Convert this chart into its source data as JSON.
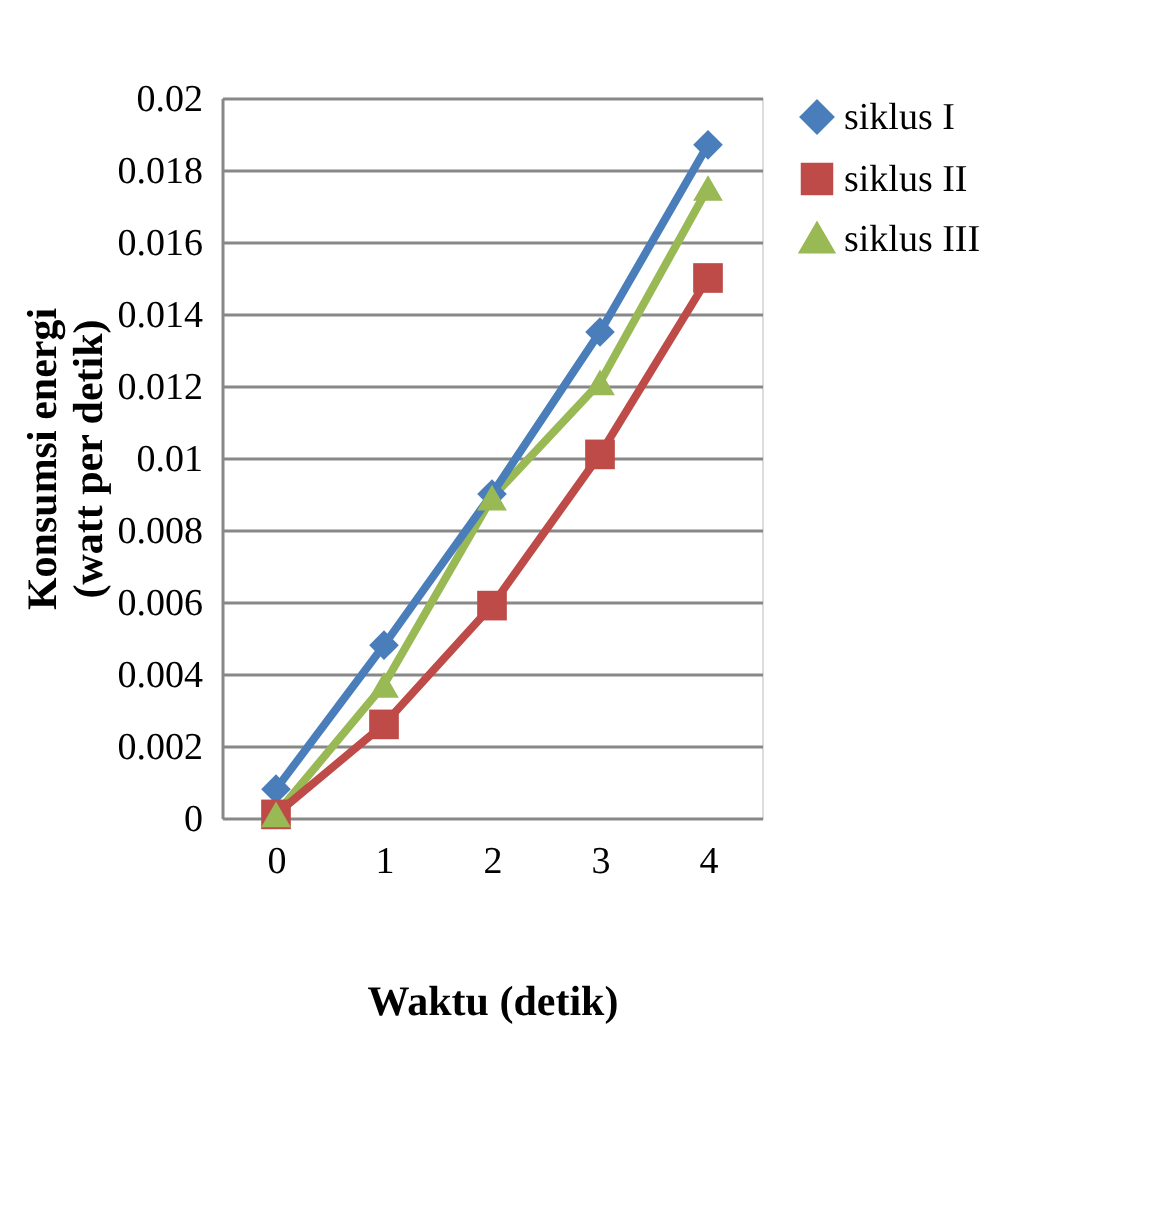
{
  "chart_data": {
    "type": "line",
    "xlabel": "Waktu (detik)",
    "ylabel": "Konsumsi energi (watt per detik)",
    "categories": [
      "0",
      "1",
      "2",
      "3",
      "4"
    ],
    "series": [
      {
        "name": "siklus I",
        "color": "#4a7ebb",
        "marker": "diamond",
        "values": [
          0.0008,
          0.0048,
          0.009,
          0.0135,
          0.0187
        ]
      },
      {
        "name": "siklus II",
        "color": "#be4b48",
        "marker": "square",
        "values": [
          0.0001,
          0.0026,
          0.0059,
          0.0101,
          0.015
        ]
      },
      {
        "name": "siklus III",
        "color": "#98b954",
        "marker": "triangle",
        "values": [
          0.0001,
          0.0037,
          0.0089,
          0.0121,
          0.0175
        ]
      }
    ],
    "ylim": [
      0,
      0.02
    ],
    "yticks": [
      0,
      0.002,
      0.004,
      0.006,
      0.008,
      0.01,
      0.012,
      0.014,
      0.016,
      0.018,
      0.02
    ],
    "grid": "y",
    "legend": "right"
  }
}
